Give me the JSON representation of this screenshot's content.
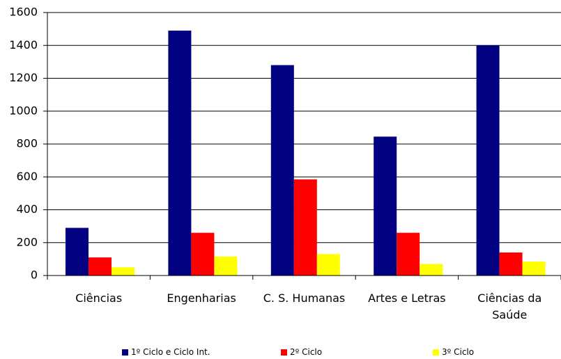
{
  "chart_data": {
    "type": "bar",
    "categories": [
      "Ciências",
      "Engenharias",
      "C. S. Humanas",
      "Artes e Letras",
      "Ciências da Saúde"
    ],
    "series": [
      {
        "name": "1º Ciclo e Ciclo Int.",
        "color": "#000080",
        "values": [
          290,
          1490,
          1280,
          845,
          1400
        ]
      },
      {
        "name": "2º Ciclo",
        "color": "#ff0000",
        "values": [
          110,
          260,
          585,
          260,
          140
        ]
      },
      {
        "name": "3º Ciclo",
        "color": "#ffff00",
        "values": [
          50,
          115,
          130,
          70,
          85
        ]
      }
    ],
    "ylim": [
      0,
      1600
    ],
    "yticks": [
      0,
      200,
      400,
      600,
      800,
      1000,
      1200,
      1400,
      1600
    ],
    "grid": true
  }
}
